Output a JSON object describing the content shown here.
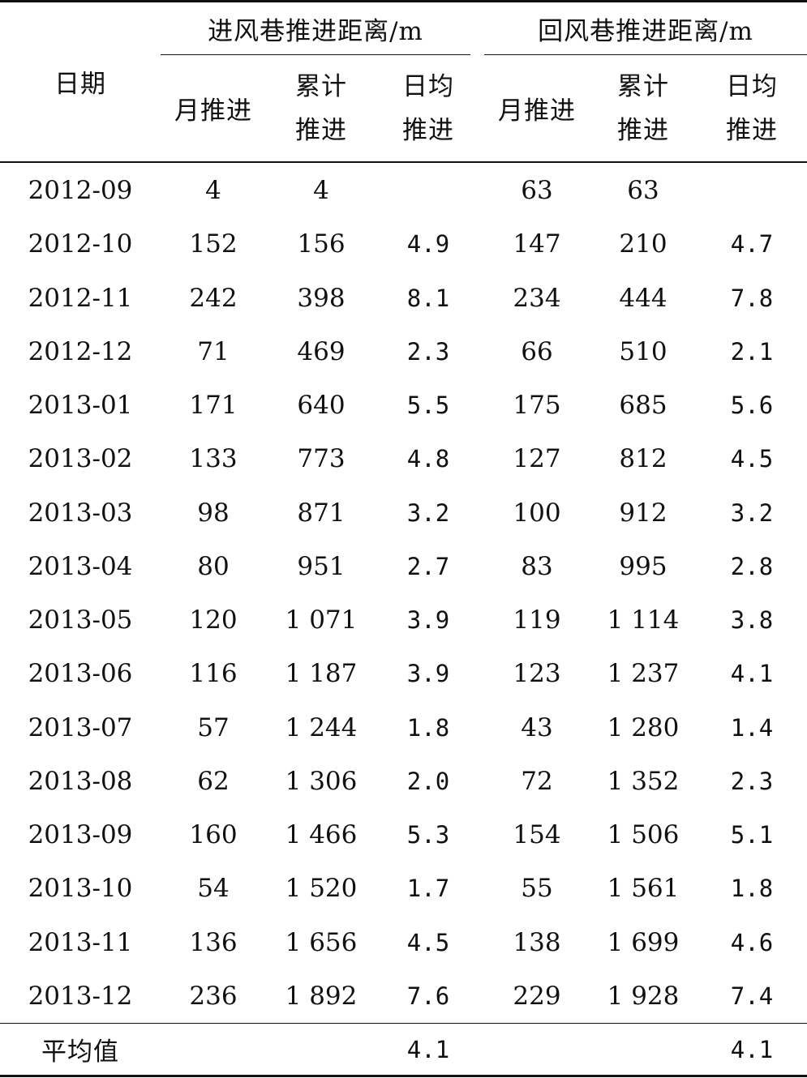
{
  "header": {
    "date": "日期",
    "intake_group": "进风巷推进距离/m",
    "return_group": "回风巷推进距离/m",
    "monthly": "月推进",
    "cumulative_line1": "累计",
    "cumulative_line2": "推进",
    "daily_line1": "日均",
    "daily_line2": "推进"
  },
  "rows": [
    {
      "date": "2012-09",
      "in_month": "4",
      "in_cum": "4",
      "in_daily": "",
      "ret_month": "63",
      "ret_cum": "63",
      "ret_daily": ""
    },
    {
      "date": "2012-10",
      "in_month": "152",
      "in_cum": "156",
      "in_daily": "4.9",
      "ret_month": "147",
      "ret_cum": "210",
      "ret_daily": "4.7"
    },
    {
      "date": "2012-11",
      "in_month": "242",
      "in_cum": "398",
      "in_daily": "8.1",
      "ret_month": "234",
      "ret_cum": "444",
      "ret_daily": "7.8"
    },
    {
      "date": "2012-12",
      "in_month": "71",
      "in_cum": "469",
      "in_daily": "2.3",
      "ret_month": "66",
      "ret_cum": "510",
      "ret_daily": "2.1"
    },
    {
      "date": "2013-01",
      "in_month": "171",
      "in_cum": "640",
      "in_daily": "5.5",
      "ret_month": "175",
      "ret_cum": "685",
      "ret_daily": "5.6"
    },
    {
      "date": "2013-02",
      "in_month": "133",
      "in_cum": "773",
      "in_daily": "4.8",
      "ret_month": "127",
      "ret_cum": "812",
      "ret_daily": "4.5"
    },
    {
      "date": "2013-03",
      "in_month": "98",
      "in_cum": "871",
      "in_daily": "3.2",
      "ret_month": "100",
      "ret_cum": "912",
      "ret_daily": "3.2"
    },
    {
      "date": "2013-04",
      "in_month": "80",
      "in_cum": "951",
      "in_daily": "2.7",
      "ret_month": "83",
      "ret_cum": "995",
      "ret_daily": "2.8"
    },
    {
      "date": "2013-05",
      "in_month": "120",
      "in_cum": "1 071",
      "in_daily": "3.9",
      "ret_month": "119",
      "ret_cum": "1 114",
      "ret_daily": "3.8"
    },
    {
      "date": "2013-06",
      "in_month": "116",
      "in_cum": "1 187",
      "in_daily": "3.9",
      "ret_month": "123",
      "ret_cum": "1 237",
      "ret_daily": "4.1"
    },
    {
      "date": "2013-07",
      "in_month": "57",
      "in_cum": "1 244",
      "in_daily": "1.8",
      "ret_month": "43",
      "ret_cum": "1 280",
      "ret_daily": "1.4"
    },
    {
      "date": "2013-08",
      "in_month": "62",
      "in_cum": "1 306",
      "in_daily": "2.0",
      "ret_month": "72",
      "ret_cum": "1 352",
      "ret_daily": "2.3"
    },
    {
      "date": "2013-09",
      "in_month": "160",
      "in_cum": "1 466",
      "in_daily": "5.3",
      "ret_month": "154",
      "ret_cum": "1 506",
      "ret_daily": "5.1"
    },
    {
      "date": "2013-10",
      "in_month": "54",
      "in_cum": "1 520",
      "in_daily": "1.7",
      "ret_month": "55",
      "ret_cum": "1 561",
      "ret_daily": "1.8"
    },
    {
      "date": "2013-11",
      "in_month": "136",
      "in_cum": "1 656",
      "in_daily": "4.5",
      "ret_month": "138",
      "ret_cum": "1 699",
      "ret_daily": "4.6"
    },
    {
      "date": "2013-12",
      "in_month": "236",
      "in_cum": "1 892",
      "in_daily": "7.6",
      "ret_month": "229",
      "ret_cum": "1 928",
      "ret_daily": "7.4"
    }
  ],
  "footer": {
    "label": "平均值",
    "in_daily": "4.1",
    "ret_daily": "4.1"
  }
}
